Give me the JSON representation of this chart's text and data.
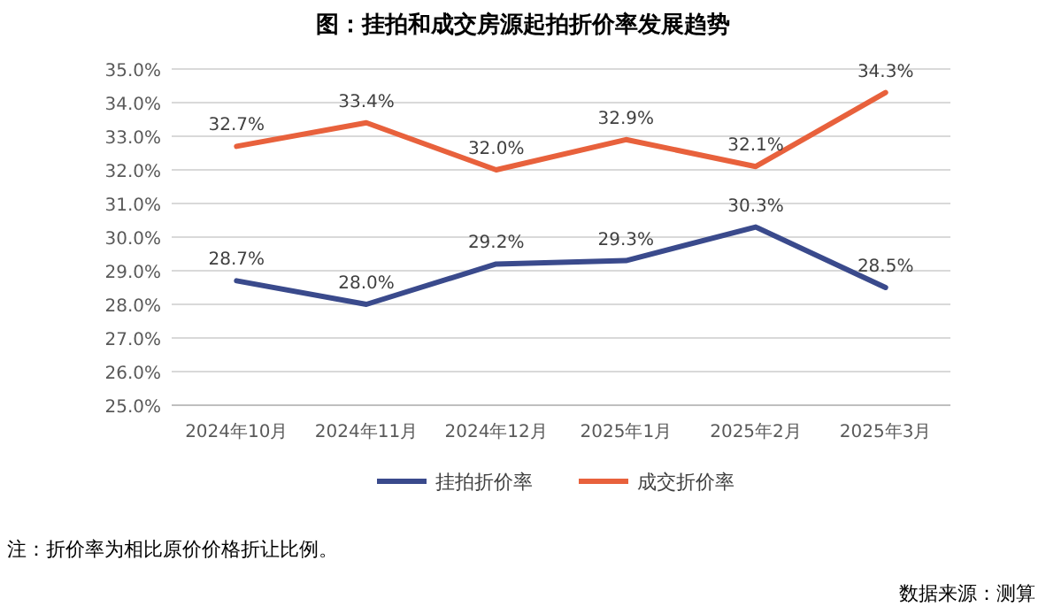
{
  "chart_data": {
    "type": "line",
    "title": "图：挂拍和成交房源起拍折价率发展趋势",
    "categories": [
      "2024年10月",
      "2024年11月",
      "2024年12月",
      "2025年1月",
      "2025年2月",
      "2025年3月"
    ],
    "series": [
      {
        "name": "挂拍折价率",
        "color": "#3a4a8c",
        "values": [
          28.7,
          28.0,
          29.2,
          29.3,
          30.3,
          28.5
        ],
        "value_labels": [
          "28.7%",
          "28.0%",
          "29.2%",
          "29.3%",
          "30.3%",
          "28.5%"
        ]
      },
      {
        "name": "成交折价率",
        "color": "#e8613c",
        "values": [
          32.7,
          33.4,
          32.0,
          32.9,
          32.1,
          34.3
        ],
        "value_labels": [
          "32.7%",
          "33.4%",
          "32.0%",
          "32.9%",
          "32.1%",
          "34.3%"
        ]
      }
    ],
    "ylim": [
      25,
      35
    ],
    "yticks": [
      {
        "value": 25,
        "label": "25.0%"
      },
      {
        "value": 26,
        "label": "26.0%"
      },
      {
        "value": 27,
        "label": "27.0%"
      },
      {
        "value": 28,
        "label": "28.0%"
      },
      {
        "value": 29,
        "label": "29.0%"
      },
      {
        "value": 30,
        "label": "30.0%"
      },
      {
        "value": 31,
        "label": "31.0%"
      },
      {
        "value": 32,
        "label": "32.0%"
      },
      {
        "value": 33,
        "label": "33.0%"
      },
      {
        "value": 34,
        "label": "34.0%"
      },
      {
        "value": 35,
        "label": "35.0%"
      }
    ],
    "grid": "y",
    "legend": "bottom",
    "annotations": [
      "注：折价率为相比原价价格折让比例。",
      "数据来源：测算"
    ]
  }
}
